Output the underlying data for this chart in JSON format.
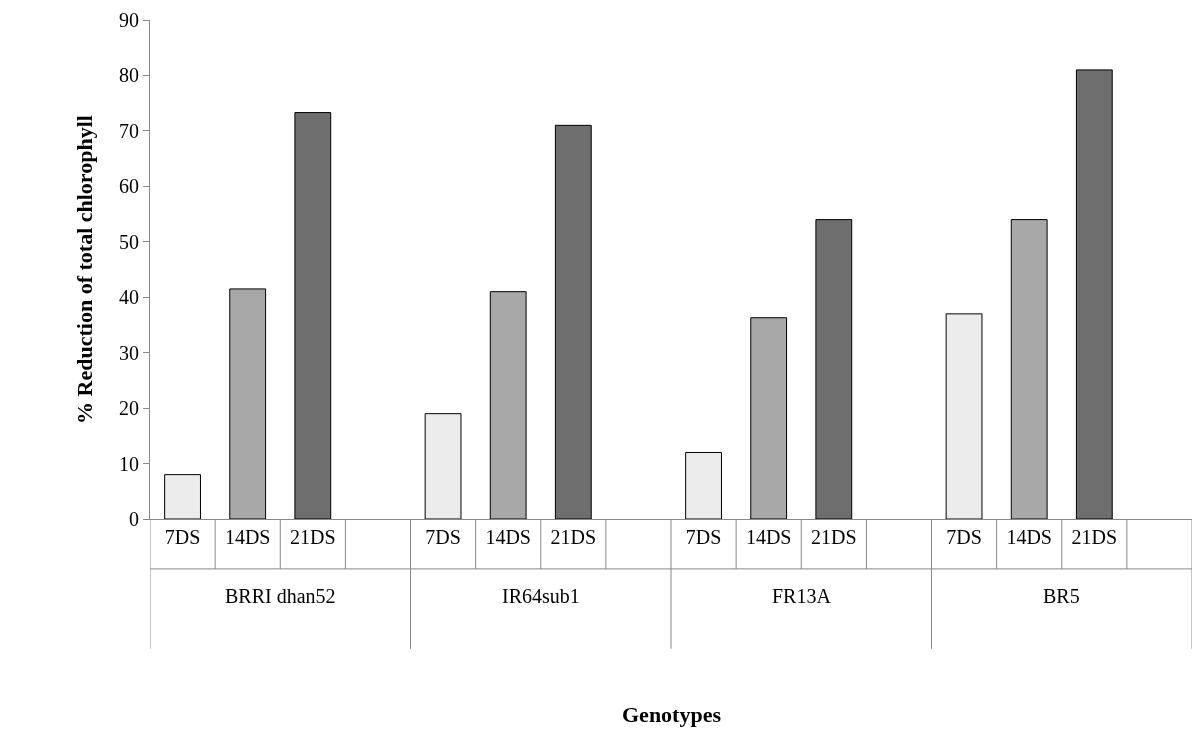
{
  "chart_data": {
    "type": "bar",
    "ylabel": "% Reduction of total chlorophyll",
    "categories": [
      "7DS",
      "14DS",
      "21DS",
      null,
      "7DS",
      "14DS",
      "21DS",
      null,
      "7DS",
      "14DS",
      "21DS",
      null,
      "7DS",
      "14DS",
      "21DS",
      null
    ],
    "values": [
      8,
      41.5,
      73.3,
      null,
      19,
      41,
      71,
      null,
      12,
      36.3,
      54,
      null,
      37,
      54,
      81,
      null
    ],
    "colors": [
      "#ececec",
      "#a8a8a8",
      "#6e6e6e",
      "#ffffff",
      "#ececec",
      "#a8a8a8",
      "#6e6e6e",
      "#ffffff",
      "#ececec",
      "#a8a8a8",
      "#6e6e6e",
      "#ffffff",
      "#ececec",
      "#a8a8a8",
      "#6e6e6e",
      "#ffffff"
    ],
    "annotations": [
      "BRRI dhan52",
      "IR64sub1",
      "FR13A",
      "BR5",
      "Genotypes"
    ],
    "ylim": [
      0,
      90
    ],
    "yticks": [
      0,
      10,
      20,
      30,
      40,
      50,
      60,
      70,
      80,
      90
    ],
    "legend": false
  }
}
